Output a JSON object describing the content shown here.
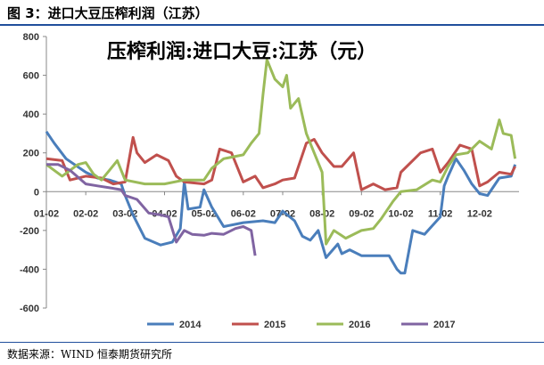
{
  "header": {
    "figure_title": "图 3：进口大豆压榨利润（江苏）"
  },
  "footer": {
    "source": "数据来源：WIND 恒泰期货研究所"
  },
  "chart_data": {
    "type": "line",
    "title": "压榨利润:进口大豆:江苏（元）",
    "xlabel": "",
    "ylabel": "",
    "ylim": [
      -600,
      800
    ],
    "yticks": [
      800,
      600,
      400,
      200,
      0,
      -200,
      -400,
      -600
    ],
    "x_tick_labels": [
      "01-02",
      "02-02",
      "03-02",
      "04-02",
      "05-02",
      "06-02",
      "07-02",
      "08-02",
      "09-02",
      "10-02",
      "11-02",
      "12-02"
    ],
    "grid": false,
    "legend_position": "bottom",
    "series": [
      {
        "name": "2014",
        "color": "#4a7ebb",
        "points": [
          [
            1,
            310
          ],
          [
            1.2,
            250
          ],
          [
            1.5,
            170
          ],
          [
            2,
            100
          ],
          [
            2.3,
            70
          ],
          [
            2.6,
            60
          ],
          [
            2.9,
            40
          ],
          [
            3,
            -20
          ],
          [
            3.2,
            -120
          ],
          [
            3.5,
            -240
          ],
          [
            3.9,
            -275
          ],
          [
            4.2,
            -260
          ],
          [
            4.4,
            -190
          ],
          [
            4.5,
            50
          ],
          [
            4.6,
            -90
          ],
          [
            4.9,
            -80
          ],
          [
            5.0,
            10
          ],
          [
            5.2,
            -80
          ],
          [
            5.5,
            -180
          ],
          [
            6,
            -160
          ],
          [
            6.5,
            -150
          ],
          [
            6.8,
            -160
          ],
          [
            7,
            -100
          ],
          [
            7.3,
            -150
          ],
          [
            7.5,
            -230
          ],
          [
            7.7,
            -250
          ],
          [
            7.9,
            -200
          ],
          [
            8.1,
            -340
          ],
          [
            8.4,
            -270
          ],
          [
            8.5,
            -320
          ],
          [
            8.7,
            -300
          ],
          [
            9,
            -330
          ],
          [
            9.4,
            -330
          ],
          [
            9.7,
            -330
          ],
          [
            9.9,
            -400
          ],
          [
            10,
            -420
          ],
          [
            10.1,
            -420
          ],
          [
            10.3,
            -200
          ],
          [
            10.6,
            -220
          ],
          [
            11,
            -130
          ],
          [
            11.1,
            30
          ],
          [
            11.2,
            80
          ],
          [
            11.4,
            170
          ],
          [
            11.6,
            110
          ],
          [
            11.8,
            40
          ],
          [
            12,
            -10
          ],
          [
            12.2,
            -20
          ],
          [
            12.5,
            70
          ],
          [
            12.8,
            80
          ],
          [
            12.9,
            140
          ]
        ]
      },
      {
        "name": "2015",
        "color": "#c0504d",
        "points": [
          [
            1,
            170
          ],
          [
            1.4,
            160
          ],
          [
            1.6,
            60
          ],
          [
            2,
            80
          ],
          [
            2.4,
            70
          ],
          [
            2.7,
            40
          ],
          [
            3,
            50
          ],
          [
            3.2,
            280
          ],
          [
            3.3,
            200
          ],
          [
            3.5,
            150
          ],
          [
            3.8,
            190
          ],
          [
            4.1,
            160
          ],
          [
            4.3,
            80
          ],
          [
            4.5,
            50
          ],
          [
            5,
            40
          ],
          [
            5.2,
            60
          ],
          [
            5.4,
            220
          ],
          [
            5.7,
            200
          ],
          [
            6,
            50
          ],
          [
            6.3,
            80
          ],
          [
            6.5,
            20
          ],
          [
            6.8,
            40
          ],
          [
            7,
            60
          ],
          [
            7.3,
            70
          ],
          [
            7.6,
            250
          ],
          [
            7.8,
            270
          ],
          [
            8,
            200
          ],
          [
            8.3,
            130
          ],
          [
            8.5,
            130
          ],
          [
            8.8,
            200
          ],
          [
            9,
            10
          ],
          [
            9.3,
            40
          ],
          [
            9.6,
            10
          ],
          [
            9.9,
            20
          ],
          [
            10,
            100
          ],
          [
            10.5,
            200
          ],
          [
            10.8,
            220
          ],
          [
            11,
            100
          ],
          [
            11.2,
            150
          ],
          [
            11.5,
            240
          ],
          [
            11.8,
            220
          ],
          [
            12,
            30
          ],
          [
            12.2,
            50
          ],
          [
            12.5,
            100
          ],
          [
            12.8,
            90
          ],
          [
            12.9,
            130
          ]
        ]
      },
      {
        "name": "2016",
        "color": "#9bbb59",
        "points": [
          [
            1,
            140
          ],
          [
            1.4,
            80
          ],
          [
            1.8,
            140
          ],
          [
            2,
            150
          ],
          [
            2.2,
            90
          ],
          [
            2.4,
            60
          ],
          [
            2.6,
            110
          ],
          [
            2.8,
            160
          ],
          [
            3,
            60
          ],
          [
            3.5,
            40
          ],
          [
            4,
            40
          ],
          [
            4.5,
            60
          ],
          [
            5,
            60
          ],
          [
            5.2,
            120
          ],
          [
            5.5,
            170
          ],
          [
            6,
            190
          ],
          [
            6.2,
            250
          ],
          [
            6.4,
            300
          ],
          [
            6.5,
            500
          ],
          [
            6.6,
            680
          ],
          [
            6.8,
            580
          ],
          [
            7,
            540
          ],
          [
            7.1,
            600
          ],
          [
            7.2,
            430
          ],
          [
            7.4,
            480
          ],
          [
            7.6,
            300
          ],
          [
            7.8,
            200
          ],
          [
            8,
            100
          ],
          [
            8.1,
            -270
          ],
          [
            8.3,
            -200
          ],
          [
            8.6,
            -240
          ],
          [
            9,
            -200
          ],
          [
            9.3,
            -190
          ],
          [
            9.5,
            -140
          ],
          [
            9.8,
            -50
          ],
          [
            10,
            0
          ],
          [
            10.4,
            10
          ],
          [
            10.8,
            60
          ],
          [
            11,
            50
          ],
          [
            11.2,
            130
          ],
          [
            11.4,
            190
          ],
          [
            11.7,
            200
          ],
          [
            12,
            260
          ],
          [
            12.3,
            220
          ],
          [
            12.5,
            370
          ],
          [
            12.6,
            300
          ],
          [
            12.8,
            290
          ],
          [
            12.9,
            170
          ]
        ]
      },
      {
        "name": "2017",
        "color": "#8064a2",
        "points": [
          [
            1,
            140
          ],
          [
            1.3,
            140
          ],
          [
            1.6,
            110
          ],
          [
            2,
            40
          ],
          [
            2.3,
            30
          ],
          [
            2.6,
            20
          ],
          [
            2.9,
            10
          ],
          [
            3,
            -20
          ],
          [
            3.3,
            -40
          ],
          [
            3.6,
            -110
          ],
          [
            3.9,
            -120
          ],
          [
            4.1,
            -130
          ],
          [
            4.3,
            -260
          ],
          [
            4.5,
            -200
          ],
          [
            4.7,
            -220
          ],
          [
            5,
            -225
          ],
          [
            5.2,
            -215
          ],
          [
            5.5,
            -220
          ],
          [
            5.8,
            -190
          ],
          [
            6,
            -180
          ],
          [
            6.2,
            -200
          ],
          [
            6.3,
            -330
          ]
        ]
      }
    ]
  }
}
